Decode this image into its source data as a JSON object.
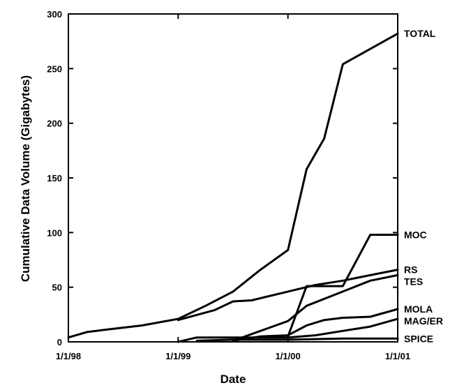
{
  "chart_data": {
    "type": "line",
    "title": "",
    "xlabel": "Date",
    "ylabel": "Cumulative Data Volume (Gigabytes)",
    "xlim": [
      1998.0,
      2001.0
    ],
    "ylim": [
      0,
      300
    ],
    "x_ticks": [
      {
        "value": 1998.0,
        "label": "1/1/98"
      },
      {
        "value": 1999.0,
        "label": "1/1/99"
      },
      {
        "value": 2000.0,
        "label": "1/1/00"
      },
      {
        "value": 2001.0,
        "label": "1/1/01"
      }
    ],
    "y_ticks": [
      0,
      50,
      100,
      150,
      200,
      250,
      300
    ],
    "grid": false,
    "legend": "labels at right end of lines",
    "series": [
      {
        "name": "TOTAL",
        "x": [
          1998.0,
          1998.17,
          1998.33,
          1998.67,
          1999.0,
          1999.25,
          1999.5,
          1999.75,
          2000.0,
          2000.17,
          2000.33,
          2000.5,
          2000.75,
          2001.0
        ],
        "y": [
          4,
          9,
          11,
          15,
          21,
          33,
          46,
          66,
          84,
          158,
          186,
          254,
          268,
          282
        ]
      },
      {
        "name": "MOC",
        "x": [
          2000.0,
          2000.17,
          2000.5,
          2000.75,
          2001.0
        ],
        "y": [
          5,
          51,
          51,
          98,
          98
        ]
      },
      {
        "name": "RS",
        "x": [
          1999.0,
          1999.33,
          1999.5,
          1999.67,
          2000.0,
          2000.25,
          2000.5,
          2000.75,
          2001.0
        ],
        "y": [
          20,
          29,
          37,
          38,
          46,
          52,
          56,
          61,
          66
        ]
      },
      {
        "name": "TES",
        "x": [
          1999.5,
          1999.75,
          2000.0,
          2000.17,
          2000.5,
          2000.75,
          2001.0
        ],
        "y": [
          1,
          10,
          19,
          33,
          46,
          56,
          61
        ]
      },
      {
        "name": "MOLA",
        "x": [
          1999.5,
          1999.75,
          2000.0,
          2000.17,
          2000.33,
          2000.5,
          2000.75,
          2001.0
        ],
        "y": [
          1,
          5,
          6,
          15,
          20,
          22,
          23,
          30
        ]
      },
      {
        "name": "MAG/ER",
        "x": [
          1999.0,
          1999.17,
          1999.5,
          2000.0,
          2000.25,
          2000.5,
          2000.75,
          2001.0
        ],
        "y": [
          0,
          4,
          4,
          4,
          6,
          10,
          14,
          21
        ]
      },
      {
        "name": "SPICE",
        "x": [
          1999.17,
          1999.5,
          2000.0,
          2000.5,
          2001.0
        ],
        "y": [
          1,
          2,
          2,
          3,
          3
        ]
      }
    ]
  }
}
